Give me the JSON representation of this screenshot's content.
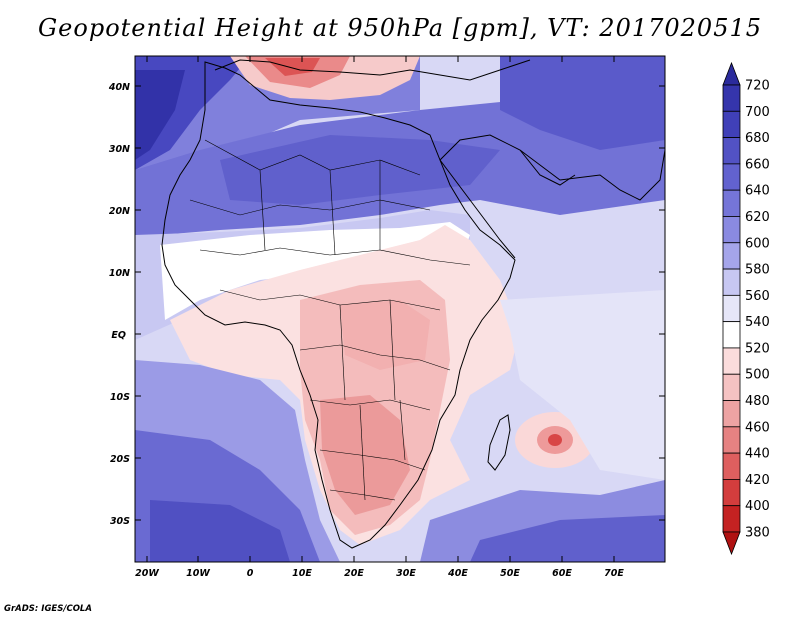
{
  "title": "Geopotential Height at 950hPa [gpm], VT: 2017020515",
  "credit": "GrADS: IGES/COLA",
  "lat_labels": [
    "40N",
    "30N",
    "20N",
    "10N",
    "EQ",
    "10S",
    "20S",
    "30S"
  ],
  "lon_labels": [
    "20W",
    "10W",
    "0",
    "10E",
    "20E",
    "30E",
    "40E",
    "50E",
    "60E",
    "70E"
  ],
  "colorbar": {
    "levels": [
      "720",
      "700",
      "680",
      "660",
      "640",
      "620",
      "600",
      "580",
      "560",
      "540",
      "520",
      "500",
      "480",
      "460",
      "440",
      "420",
      "400",
      "380"
    ],
    "colors": [
      "#2b2b9c",
      "#3535ac",
      "#4040b8",
      "#5252c4",
      "#6262cf",
      "#7575d8",
      "#8a8ae1",
      "#a5a5ea",
      "#c7c7f2",
      "#e6e6f8",
      "#ffffff",
      "#fbdcdc",
      "#f5c2c2",
      "#eda3a3",
      "#e68282",
      "#de5f5f",
      "#d33d3d",
      "#c42222",
      "#b01212"
    ]
  },
  "map": {
    "ocean_colors": {
      "north_atlantic": "#4848c0",
      "central_atlantic": "#d2d2f5",
      "south_atlantic": "#5c5ccc",
      "indian_ocean": "#d6d6f6",
      "south_indian": "#6464d0"
    },
    "land_colors": {
      "sahara": "#7070d6",
      "sahel": "#ffffff",
      "equatorial": "#f7caca",
      "southern": "#eca0a0",
      "europe_high": "#e87e7e"
    }
  }
}
